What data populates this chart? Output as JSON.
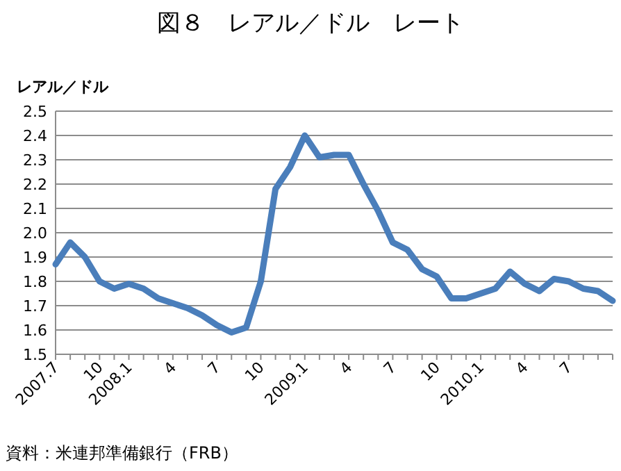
{
  "chart_data": {
    "type": "line",
    "title": "図８　レアル／ドル　レート",
    "ylabel": "レアル／ドル",
    "annotations": [
      "資料：米連邦準備銀行（FRB）"
    ],
    "categories": [
      "2007.7",
      null,
      null,
      "10",
      null,
      "2008.1",
      null,
      null,
      "4",
      null,
      null,
      "7",
      null,
      null,
      "10",
      null,
      null,
      "2009.1",
      null,
      null,
      "4",
      null,
      null,
      "7",
      null,
      null,
      "10",
      null,
      null,
      "2010.1",
      null,
      null,
      "4",
      null,
      null,
      "7",
      null,
      null,
      null
    ],
    "series": [
      {
        "color": "#4a7ebb",
        "values": [
          1.87,
          1.96,
          1.9,
          1.8,
          1.77,
          1.79,
          1.77,
          1.73,
          1.71,
          1.69,
          1.66,
          1.62,
          1.59,
          1.61,
          1.8,
          2.18,
          2.27,
          2.4,
          2.31,
          2.32,
          2.32,
          2.2,
          2.09,
          1.96,
          1.93,
          1.85,
          1.82,
          1.73,
          1.73,
          1.75,
          1.77,
          1.84,
          1.79,
          1.76,
          1.81,
          1.8,
          1.77,
          1.76,
          1.72
        ]
      }
    ],
    "ylim": [
      1.5,
      2.5
    ],
    "yticks": [
      1.5,
      1.6,
      1.7,
      1.8,
      1.9,
      {
        "value": 2,
        "label": "2.0"
      },
      2.1,
      2.2,
      2.3,
      2.4,
      2.5
    ],
    "grid": "y",
    "marker": "none",
    "line_style": "solid"
  }
}
